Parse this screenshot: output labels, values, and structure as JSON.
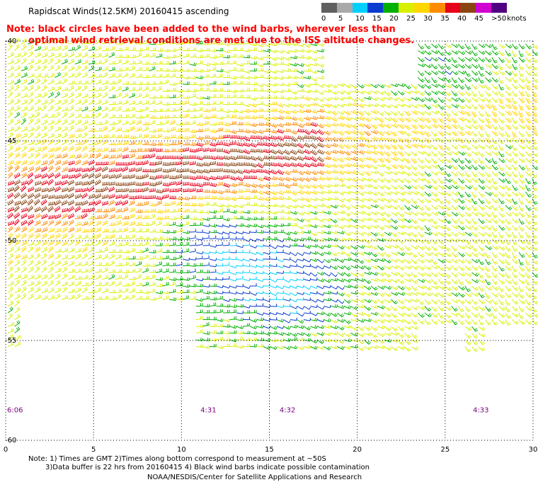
{
  "title": "Rapidscat Winds(12.5KM) 20160415 ascending",
  "note": {
    "line1": "Note: black circles have been added to the wind barbs, wherever less than",
    "line2": "optimal wind retrieval conditions are met due to the ISS altitude changes."
  },
  "legend": {
    "unit": "knots",
    "labels": [
      "0",
      "5",
      "10",
      "15",
      "20",
      "25",
      "30",
      "35",
      "40",
      "45",
      ">50"
    ],
    "colors": [
      "#606060",
      "#a9a9a9",
      "#00d0ff",
      "#0a3cd0",
      "#00b000",
      "#d8f000",
      "#ffd700",
      "#ff8c00",
      "#e8001a",
      "#8b4513",
      "#d000d0",
      "#500080"
    ]
  },
  "map": {
    "lon_ticks": [
      "0",
      "5",
      "10",
      "15",
      "20",
      "25",
      "30"
    ],
    "lat_ticks": [
      "-40",
      "-45",
      "-50",
      "-55",
      "-60"
    ],
    "times": [
      {
        "label": "6:06",
        "lon": 0
      },
      {
        "label": "4:31",
        "lon": 11
      },
      {
        "label": "4:32",
        "lon": 15.5
      },
      {
        "label": "4:33",
        "lon": 26.5
      }
    ]
  },
  "footer": {
    "line1": "Note: 1) Times are GMT 2)Times along bottom correspond to measurement at ~50S",
    "line2": "3)Data buffer is 22 hrs from 20160415 4) Black wind barbs indicate possible contamination",
    "line3": "NOAA/NESDIS/Center for Satellite Applications and Research"
  }
}
